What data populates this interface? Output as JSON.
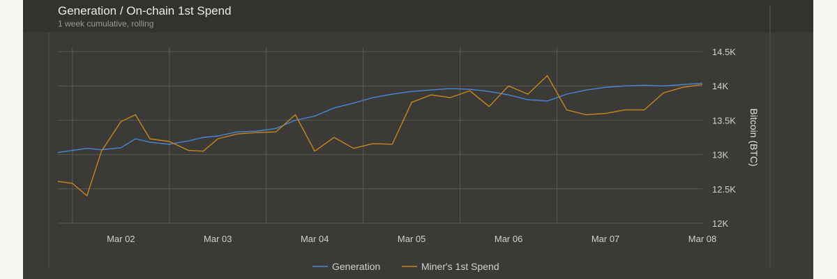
{
  "header": {
    "title": "Generation / On-chain 1st Spend",
    "subtitle": "1 week cumulative, rolling"
  },
  "chart_data": {
    "type": "line",
    "title": "Generation / On-chain 1st Spend",
    "subtitle": "1 week cumulative, rolling",
    "xlabel": "",
    "ylabel": "Bitcoin (BTC)",
    "x_ticks": [
      "Mar 02",
      "Mar 03",
      "Mar 04",
      "Mar 05",
      "Mar 06",
      "Mar 07",
      "Mar 08"
    ],
    "y_ticks": [
      "12K",
      "12.5K",
      "13K",
      "13.5K",
      "14K",
      "14.5K"
    ],
    "x_range": [
      1.35,
      8.0
    ],
    "ylim": [
      12000,
      14500
    ],
    "grid": true,
    "legend": "bottom-center",
    "x": [
      1.35,
      1.5,
      1.65,
      1.8,
      2.0,
      2.15,
      2.3,
      2.5,
      2.7,
      2.85,
      3.0,
      3.2,
      3.4,
      3.6,
      3.8,
      4.0,
      4.2,
      4.4,
      4.6,
      4.8,
      5.0,
      5.2,
      5.4,
      5.6,
      5.8,
      6.0,
      6.2,
      6.4,
      6.6,
      6.8,
      7.0,
      7.2,
      7.4,
      7.6,
      7.8,
      8.0
    ],
    "series": [
      {
        "name": "Generation",
        "color": "#4a86d6",
        "values": [
          13030,
          13060,
          13090,
          13070,
          13100,
          13230,
          13180,
          13150,
          13200,
          13250,
          13270,
          13330,
          13340,
          13380,
          13500,
          13560,
          13680,
          13750,
          13830,
          13880,
          13920,
          13940,
          13960,
          13950,
          13920,
          13870,
          13800,
          13780,
          13880,
          13940,
          13980,
          14000,
          14010,
          14000,
          14020,
          14040
        ]
      },
      {
        "name": "Miner's 1st Spend",
        "color": "#c7861f",
        "values": [
          12610,
          12580,
          12400,
          13050,
          13480,
          13580,
          13230,
          13190,
          13060,
          13050,
          13230,
          13300,
          13320,
          13330,
          13580,
          13050,
          13250,
          13090,
          13160,
          13150,
          13760,
          13870,
          13830,
          13930,
          13700,
          14000,
          13880,
          14150,
          13650,
          13580,
          13600,
          13650,
          13650,
          13900,
          13980,
          14020
        ]
      }
    ]
  }
}
